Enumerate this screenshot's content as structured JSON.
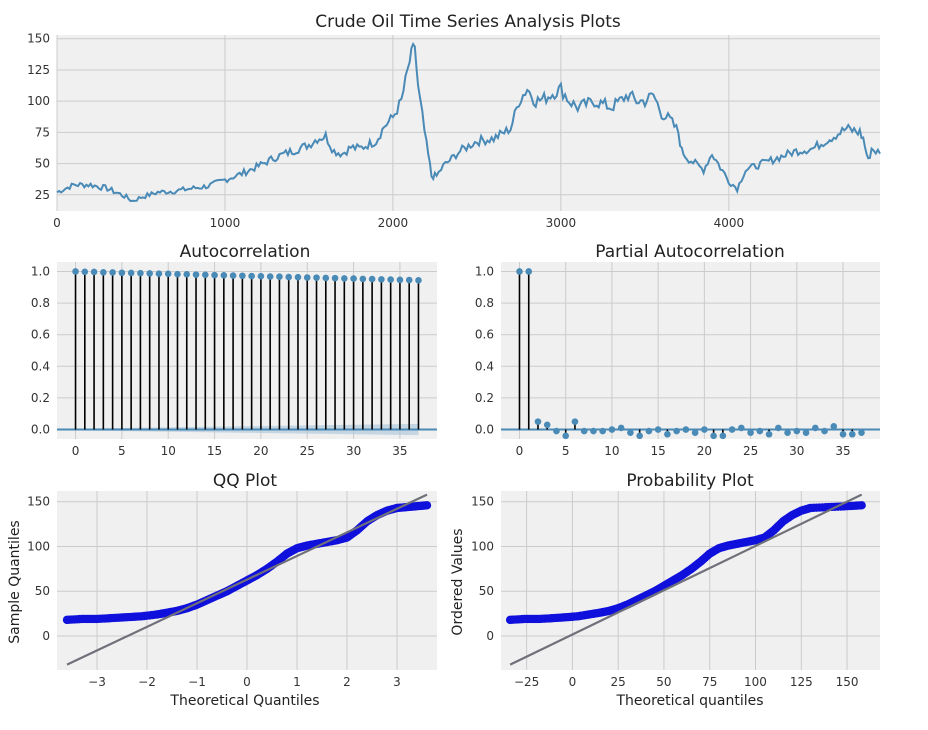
{
  "figure_title": "",
  "chart_data": [
    {
      "id": "ts",
      "type": "line",
      "title": "Crude Oil Time Series Analysis Plots",
      "xlabel": "",
      "ylabel": "",
      "xlim": [
        0,
        4900
      ],
      "ylim": [
        12,
        153
      ],
      "xticks": [
        0,
        1000,
        2000,
        3000,
        4000
      ],
      "yticks": [
        25,
        50,
        75,
        100,
        125,
        150
      ],
      "grid": true,
      "color": "#4a8ab6",
      "x": [
        0,
        100,
        200,
        300,
        400,
        450,
        500,
        600,
        700,
        800,
        900,
        1000,
        1100,
        1200,
        1300,
        1400,
        1500,
        1550,
        1600,
        1650,
        1700,
        1750,
        1800,
        1900,
        1950,
        2000,
        2050,
        2100,
        2130,
        2150,
        2200,
        2230,
        2260,
        2300,
        2400,
        2500,
        2600,
        2700,
        2750,
        2800,
        2850,
        2900,
        3000,
        3050,
        3100,
        3200,
        3300,
        3400,
        3450,
        3500,
        3550,
        3600,
        3650,
        3700,
        3720,
        3750,
        3800,
        3850,
        3900,
        4000,
        4050,
        4100,
        4200,
        4300,
        4400,
        4500,
        4600,
        4700,
        4780,
        4800,
        4830,
        4850,
        4900
      ],
      "y": [
        27,
        33,
        33,
        30,
        24,
        20,
        23,
        27,
        28,
        30,
        32,
        37,
        42,
        48,
        55,
        60,
        65,
        70,
        72,
        60,
        58,
        63,
        62,
        68,
        80,
        87,
        100,
        132,
        145,
        110,
        65,
        40,
        40,
        48,
        60,
        68,
        70,
        78,
        100,
        110,
        100,
        102,
        110,
        100,
        95,
        100,
        95,
        105,
        100,
        100,
        105,
        90,
        85,
        75,
        60,
        55,
        50,
        45,
        58,
        36,
        30,
        45,
        50,
        55,
        60,
        62,
        70,
        78,
        75,
        70,
        52,
        62,
        58
      ]
    },
    {
      "id": "acf",
      "type": "scatter",
      "title": "Autocorrelation",
      "xlabel": "",
      "ylabel": "",
      "xlim": [
        -2,
        39
      ],
      "ylim": [
        -0.06,
        1.06
      ],
      "xticks": [
        0,
        5,
        10,
        15,
        20,
        25,
        30,
        35
      ],
      "yticks": [
        0.0,
        0.2,
        0.4,
        0.6,
        0.8,
        1.0
      ],
      "grid": true,
      "lags": [
        0,
        1,
        2,
        3,
        4,
        5,
        6,
        7,
        8,
        9,
        10,
        11,
        12,
        13,
        14,
        15,
        16,
        17,
        18,
        19,
        20,
        21,
        22,
        23,
        24,
        25,
        26,
        27,
        28,
        29,
        30,
        31,
        32,
        33,
        34,
        35,
        36,
        37
      ],
      "values": [
        1.0,
        0.998,
        0.997,
        0.995,
        0.994,
        0.992,
        0.991,
        0.989,
        0.988,
        0.986,
        0.985,
        0.983,
        0.982,
        0.98,
        0.979,
        0.977,
        0.976,
        0.974,
        0.973,
        0.971,
        0.97,
        0.968,
        0.967,
        0.965,
        0.964,
        0.962,
        0.961,
        0.959,
        0.958,
        0.956,
        0.955,
        0.953,
        0.952,
        0.95,
        0.949,
        0.947,
        0.946,
        0.944
      ]
    },
    {
      "id": "pacf",
      "type": "scatter",
      "title": "Partial Autocorrelation",
      "xlabel": "",
      "ylabel": "",
      "xlim": [
        -2,
        39
      ],
      "ylim": [
        -0.06,
        1.06
      ],
      "xticks": [
        0,
        5,
        10,
        15,
        20,
        25,
        30,
        35
      ],
      "yticks": [
        0.0,
        0.2,
        0.4,
        0.6,
        0.8,
        1.0
      ],
      "grid": true,
      "lags": [
        0,
        1,
        2,
        3,
        4,
        5,
        6,
        7,
        8,
        9,
        10,
        11,
        12,
        13,
        14,
        15,
        16,
        17,
        18,
        19,
        20,
        21,
        22,
        23,
        24,
        25,
        26,
        27,
        28,
        29,
        30,
        31,
        32,
        33,
        34,
        35,
        36,
        37
      ],
      "values": [
        1.0,
        1.0,
        0.05,
        0.03,
        -0.01,
        -0.04,
        0.05,
        -0.01,
        -0.01,
        -0.01,
        0.0,
        0.01,
        -0.02,
        -0.04,
        -0.01,
        0.0,
        -0.03,
        -0.01,
        0.0,
        -0.02,
        0.0,
        -0.04,
        -0.04,
        0.0,
        0.01,
        -0.02,
        -0.01,
        -0.03,
        0.01,
        -0.02,
        -0.01,
        -0.02,
        0.01,
        -0.01,
        0.02,
        -0.03,
        -0.03,
        -0.02
      ]
    },
    {
      "id": "qq",
      "type": "scatter",
      "title": "QQ Plot",
      "xlabel": "Theoretical Quantiles",
      "ylabel": "Sample Quantiles",
      "xlim": [
        -3.8,
        3.8
      ],
      "ylim": [
        -38,
        162
      ],
      "xticks": [
        -3,
        -2,
        -1,
        0,
        1,
        2,
        3
      ],
      "yticks": [
        0,
        50,
        100,
        150
      ],
      "grid": true,
      "point_color": "#1010dd",
      "points_x": [
        -3.6,
        -3.3,
        -3.0,
        -2.7,
        -2.4,
        -2.1,
        -1.8,
        -1.6,
        -1.4,
        -1.2,
        -1.0,
        -0.8,
        -0.6,
        -0.4,
        -0.2,
        0.0,
        0.2,
        0.4,
        0.6,
        0.8,
        1.0,
        1.2,
        1.4,
        1.6,
        1.8,
        2.0,
        2.2,
        2.4,
        2.6,
        2.8,
        3.0,
        3.2,
        3.4,
        3.6
      ],
      "points_y": [
        18,
        19,
        19,
        20,
        21,
        22,
        24,
        26,
        28,
        31,
        35,
        40,
        45,
        50,
        56,
        62,
        68,
        75,
        83,
        92,
        98,
        101,
        103,
        105,
        107,
        110,
        118,
        128,
        135,
        140,
        143,
        144,
        145,
        146
      ],
      "fit_line": {
        "x": [
          -3.6,
          3.6
        ],
        "y": [
          -32,
          158
        ],
        "color": "#70707a"
      }
    },
    {
      "id": "prob",
      "type": "scatter",
      "title": "Probability Plot",
      "xlabel": "Theoretical quantiles",
      "ylabel": "Ordered Values",
      "xlim": [
        -39,
        168
      ],
      "ylim": [
        -38,
        162
      ],
      "xticks": [
        -25,
        0,
        25,
        50,
        75,
        100,
        125,
        150
      ],
      "yticks": [
        0,
        50,
        100,
        150
      ],
      "grid": true,
      "point_color": "#1010dd",
      "points_x": [
        -34,
        -26,
        -18,
        -10,
        -3,
        3,
        9,
        15,
        20,
        25,
        30,
        35,
        40,
        45,
        50,
        55,
        60,
        65,
        70,
        75,
        80,
        85,
        90,
        95,
        100,
        105,
        110,
        115,
        120,
        125,
        130,
        140,
        150,
        158
      ],
      "points_y": [
        18,
        19,
        19,
        20,
        21,
        22,
        24,
        26,
        28,
        31,
        35,
        40,
        45,
        50,
        56,
        62,
        68,
        75,
        83,
        92,
        98,
        101,
        103,
        105,
        107,
        110,
        118,
        128,
        135,
        140,
        143,
        144,
        145,
        146
      ],
      "fit_line": {
        "x": [
          -34,
          158
        ],
        "y": [
          -32,
          158
        ],
        "color": "#70707a"
      }
    }
  ]
}
